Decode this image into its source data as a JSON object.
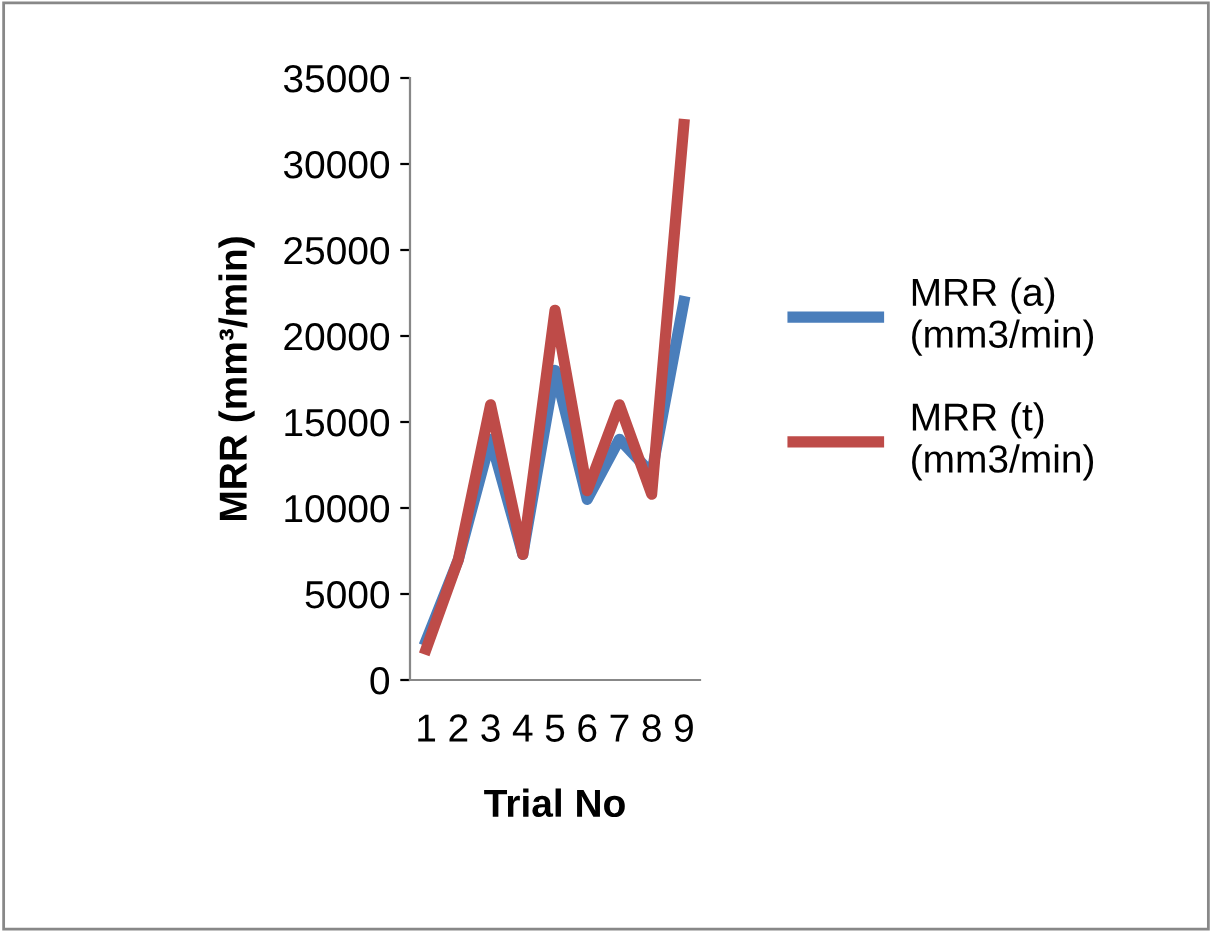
{
  "chart_data": {
    "type": "line",
    "xlabel": "Trial No",
    "ylabel": "MRR (mm³/min)",
    "categories": [
      "1",
      "2",
      "3",
      "4",
      "5",
      "6",
      "7",
      "8",
      "9"
    ],
    "series": [
      {
        "name": "MRR (a)\n(mm3/min)",
        "color": "#4a7ebb",
        "values": [
          2300,
          7000,
          14000,
          7300,
          18000,
          10500,
          14000,
          12000,
          22000
        ]
      },
      {
        "name": "MRR (t)\n(mm3/min)",
        "color": "#be4b48",
        "values": [
          1800,
          7000,
          16000,
          7300,
          21500,
          11000,
          16000,
          10800,
          32300
        ]
      }
    ],
    "ylim": [
      0,
      35000
    ],
    "yticks": [
      0,
      5000,
      10000,
      15000,
      20000,
      25000,
      30000,
      35000
    ],
    "grid": false,
    "legend": "right",
    "marker": "none",
    "line_style": "solid"
  }
}
